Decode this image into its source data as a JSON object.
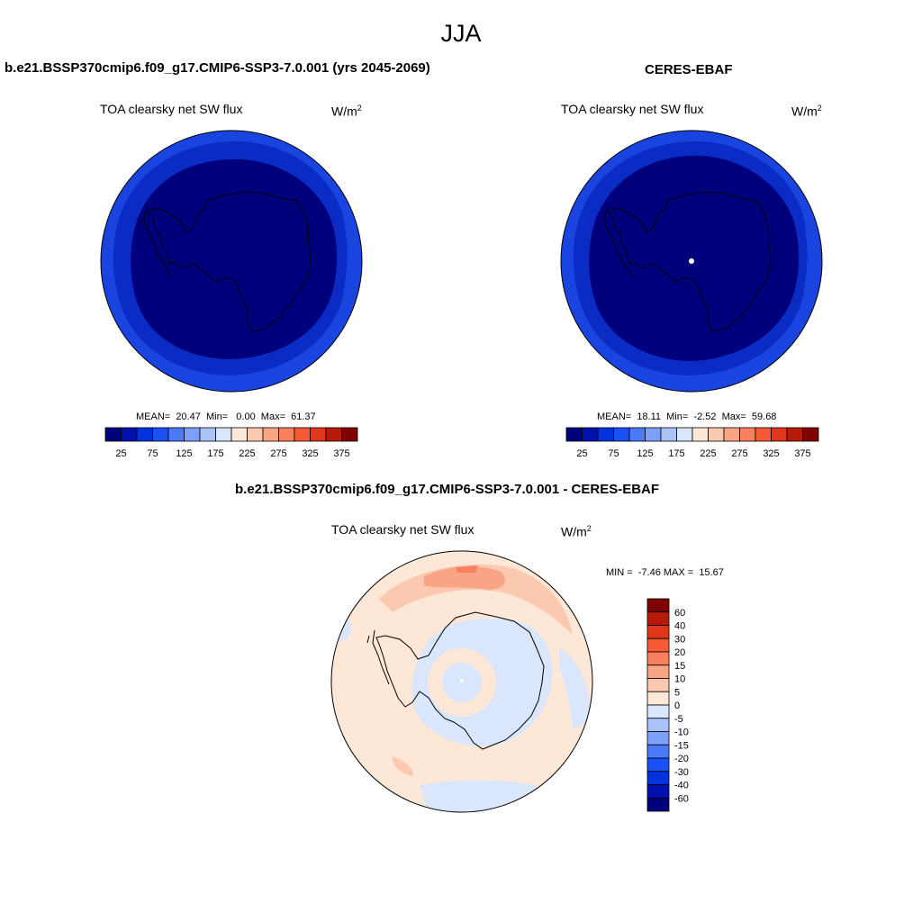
{
  "figure": {
    "title": "JJA"
  },
  "panels": [
    {
      "title": "b.e21.BSSP370cmip6.f09_g17.CMIP6-SSP3-7.0.001 (yrs 2045-2069)",
      "variable": "TOA clearsky net SW flux",
      "units_base": "W/m",
      "units_exp": "2",
      "stats_text": "MEAN=  20.47  Min=   0.00  Max=  61.37",
      "mean": 20.47,
      "min": 0.0,
      "max": 61.37
    },
    {
      "title": "CERES-EBAF",
      "variable": "TOA clearsky net SW flux",
      "units_base": "W/m",
      "units_exp": "2",
      "stats_text": "MEAN=  18.11  Min=  -2.52  Max=  59.68",
      "mean": 18.11,
      "min": -2.52,
      "max": 59.68
    },
    {
      "title": "b.e21.BSSP370cmip6.f09_g17.CMIP6-SSP3-7.0.001 - CERES-EBAF",
      "variable": "TOA clearsky net SW flux",
      "units_base": "W/m",
      "units_exp": "2",
      "stats_text": "MIN =  -7.46 MAX =  15.67",
      "min": -7.46,
      "max": 15.67
    }
  ],
  "colorbar_abs": {
    "colors": [
      "#00007d",
      "#0011b0",
      "#0033dd",
      "#1a50f5",
      "#4a79fa",
      "#7d9ff9",
      "#aac2f8",
      "#d9e6fb",
      "#fde8d8",
      "#fbc9af",
      "#f9a485",
      "#f8805e",
      "#f65b35",
      "#e03619",
      "#b61b0a",
      "#800000"
    ],
    "tick_labels": [
      "25",
      "75",
      "125",
      "175",
      "225",
      "275",
      "325",
      "375"
    ]
  },
  "colorbar_diff": {
    "colors": [
      "#00007d",
      "#0011b0",
      "#0033dd",
      "#1a50f5",
      "#4a79fa",
      "#7d9ff9",
      "#aac2f8",
      "#d9e6fb",
      "#fde8d8",
      "#fbc9af",
      "#f9a485",
      "#f8805e",
      "#f65b35",
      "#e03619",
      "#b61b0a",
      "#800000"
    ],
    "tick_labels": [
      "60",
      "40",
      "30",
      "20",
      "15",
      "10",
      "5",
      "0",
      "-5",
      "-10",
      "-15",
      "-20",
      "-30",
      "-40",
      "-60"
    ]
  }
}
